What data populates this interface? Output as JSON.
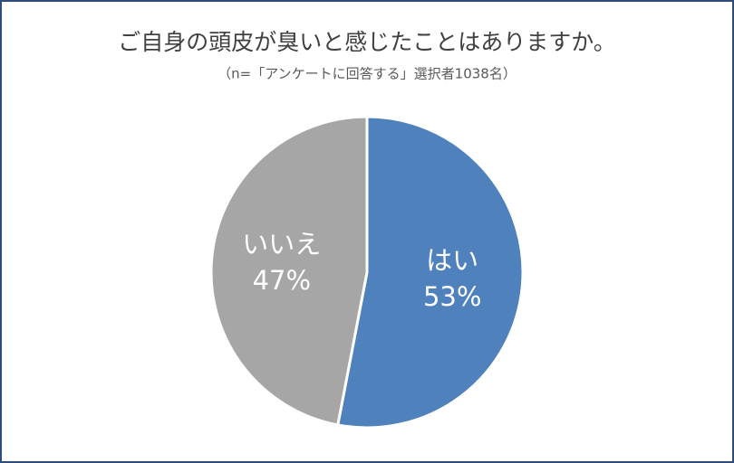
{
  "chart_data": {
    "type": "pie",
    "title": "ご自身の頭皮が臭いと感じたことはありますか。",
    "subtitle": "（n=「アンケートに回答する」選択者1038名）",
    "categories": [
      "はい",
      "いいえ"
    ],
    "values": [
      53,
      47
    ],
    "value_labels": [
      "53%",
      "47%"
    ],
    "colors": [
      "#4f81bd",
      "#a6a6a6"
    ]
  }
}
